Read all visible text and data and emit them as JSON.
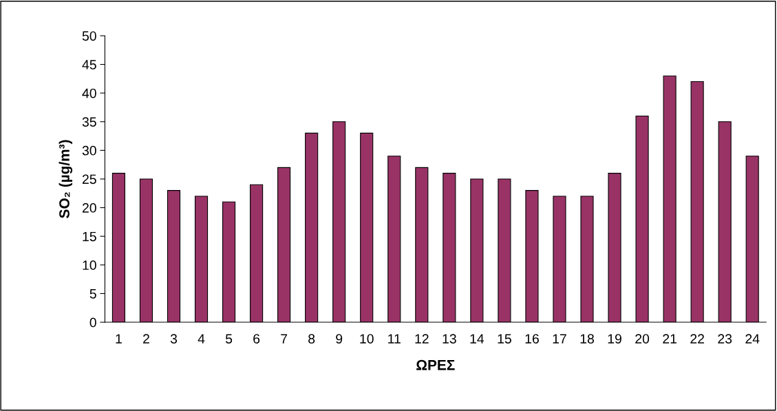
{
  "chart_data": {
    "type": "bar",
    "xlabel": "ΩΡΕΣ",
    "ylabel": "SO₂ (µg/m³)",
    "categories": [
      "1",
      "2",
      "3",
      "4",
      "5",
      "6",
      "7",
      "8",
      "9",
      "10",
      "11",
      "12",
      "13",
      "14",
      "15",
      "16",
      "17",
      "18",
      "19",
      "20",
      "21",
      "22",
      "23",
      "24"
    ],
    "values": [
      26,
      25,
      23,
      22,
      21,
      24,
      27,
      33,
      35,
      33,
      29,
      27,
      26,
      25,
      25,
      23,
      22,
      22,
      26,
      36,
      43,
      42,
      35,
      29
    ],
    "color": "#993366",
    "ylim": [
      0,
      50
    ],
    "yticks": [
      0,
      5,
      10,
      15,
      20,
      25,
      30,
      35,
      40,
      45,
      50
    ],
    "grid": false,
    "legend": false
  }
}
